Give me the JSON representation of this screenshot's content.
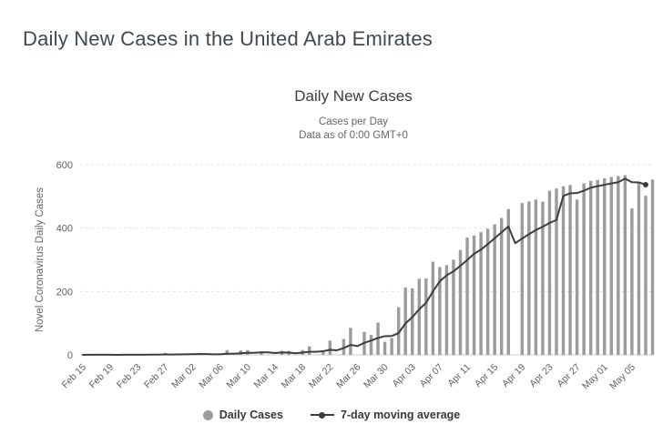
{
  "page": {
    "title": "Daily New Cases in the United Arab Emirates"
  },
  "chart_data": {
    "type": "bar",
    "title": "Daily New Cases",
    "subtitle": [
      "Cases per Day",
      "Data as of 0:00 GMT+0"
    ],
    "ylabel": "Novel Coronavirus Daily Cases",
    "xlabel": "",
    "ylim": [
      0,
      600
    ],
    "y_ticks": [
      0,
      200,
      400,
      600
    ],
    "grid": "horizontal-dashed",
    "legend_position": "bottom",
    "x_tick_interval": 4,
    "x_tick_labels": [
      "Feb 15",
      "Feb 19",
      "Feb 23",
      "Feb 27",
      "Mar 02",
      "Mar 06",
      "Mar 10",
      "Mar 14",
      "Mar 18",
      "Mar 22",
      "Mar 26",
      "Mar 30",
      "Apr 03",
      "Apr 07",
      "Apr 11",
      "Apr 15",
      "Apr 19",
      "Apr 23",
      "Apr 27",
      "May 01",
      "May 05"
    ],
    "series": [
      {
        "name": "Daily Cases",
        "type": "bar",
        "color": "#9b9b9b",
        "values": [
          0,
          1,
          0,
          0,
          0,
          0,
          2,
          0,
          0,
          0,
          2,
          0,
          6,
          0,
          2,
          2,
          2,
          6,
          0,
          1,
          0,
          15,
          0,
          14,
          15,
          0,
          11,
          0,
          0,
          13,
          12,
          0,
          15,
          27,
          0,
          13,
          45,
          0,
          50,
          85,
          0,
          72,
          63,
          102,
          41,
          53,
          150,
          212,
          210,
          240,
          241,
          294,
          277,
          283,
          300,
          331,
          370,
          376,
          387,
          398,
          412,
          432,
          460,
          0,
          479,
          484,
          490,
          483,
          518,
          525,
          532,
          536,
          490,
          541,
          549,
          552,
          557,
          561,
          564,
          567,
          462,
          546,
          502,
          553
        ]
      },
      {
        "name": "7-day moving average",
        "type": "line",
        "color": "#3d3d3d",
        "window": 7,
        "derived_from": "Daily Cases"
      }
    ],
    "colors": {
      "grid": "#e4e4e4",
      "axis_line": "#cccccc",
      "tick_text": "#606060"
    }
  }
}
